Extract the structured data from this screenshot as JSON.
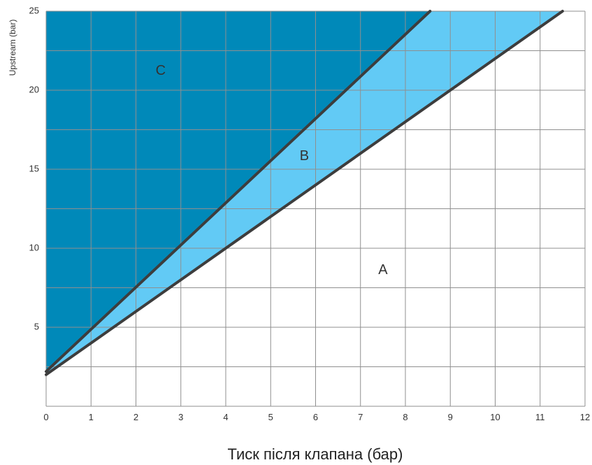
{
  "chart_data": {
    "type": "area",
    "title": "",
    "xlabel": "Тиск після клапана (бар)",
    "ylabel": "Upstream (bar)",
    "xlim": [
      0,
      12
    ],
    "ylim": [
      0,
      25
    ],
    "x_ticks": [
      "0",
      "1",
      "2",
      "3",
      "4",
      "5",
      "6",
      "7",
      "8",
      "9",
      "10",
      "11",
      "12"
    ],
    "y_ticks": [
      "5",
      "10",
      "15",
      "20",
      "25"
    ],
    "grid": true,
    "x_grid_step": 1,
    "y_grid_step": 2.5,
    "lines": [
      {
        "name": "steep",
        "x": [
          0,
          8.55
        ],
        "y": [
          2.2,
          25
        ]
      },
      {
        "name": "shallow",
        "x": [
          0,
          11.5
        ],
        "y": [
          2,
          25
        ]
      }
    ],
    "regions": [
      {
        "name": "C",
        "color": "#0089b9"
      },
      {
        "name": "B",
        "color": "#62caf5"
      },
      {
        "name": "A",
        "color": "#ffffff"
      }
    ],
    "region_labels": [
      {
        "text": "C",
        "x": 2.55,
        "y": 21.2
      },
      {
        "text": "B",
        "x": 5.75,
        "y": 15.8
      },
      {
        "text": "A",
        "x": 7.5,
        "y": 8.6
      }
    ]
  }
}
